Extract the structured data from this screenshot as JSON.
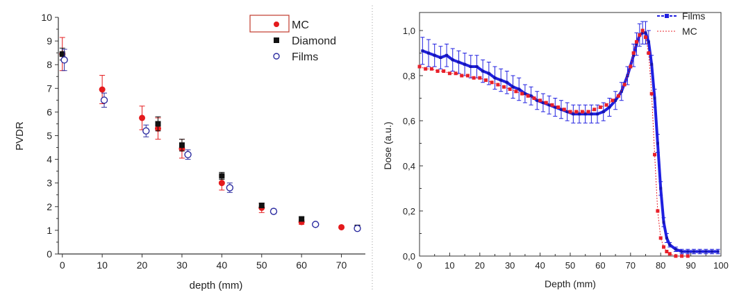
{
  "chart_data": [
    {
      "type": "scatter",
      "title": "",
      "xlabel": "depth (mm)",
      "ylabel": "PVDR",
      "xlim": [
        -1,
        76
      ],
      "ylim": [
        0,
        10
      ],
      "x_ticks": [
        0,
        10,
        20,
        30,
        40,
        50,
        60,
        70
      ],
      "y_ticks": [
        0,
        1,
        2,
        3,
        4,
        5,
        6,
        7,
        8,
        9,
        10
      ],
      "x_tick_labels": [
        "0",
        "10",
        "20",
        "30",
        "40",
        "50",
        "60",
        "70"
      ],
      "y_tick_labels": [
        "0",
        "1",
        "2",
        "3",
        "4",
        "5",
        "6",
        "7",
        "8",
        "9",
        "10"
      ],
      "grid": false,
      "legend_position": "top-right",
      "series": [
        {
          "name": "MC",
          "marker": "filled-circle",
          "color": "#e41a1c",
          "points": [
            {
              "x": 0,
              "y": 8.45,
              "err": 0.7
            },
            {
              "x": 10,
              "y": 6.95,
              "err": 0.6
            },
            {
              "x": 20,
              "y": 5.75,
              "err": 0.5
            },
            {
              "x": 24,
              "y": 5.3,
              "err": 0.45
            },
            {
              "x": 30,
              "y": 4.45,
              "err": 0.4
            },
            {
              "x": 40,
              "y": 3.0,
              "err": 0.3
            },
            {
              "x": 50,
              "y": 1.95,
              "err": 0.2
            },
            {
              "x": 60,
              "y": 1.35,
              "err": 0.1
            },
            {
              "x": 70,
              "y": 1.13,
              "err": 0.05
            }
          ]
        },
        {
          "name": "Diamond",
          "marker": "filled-square",
          "color": "#111111",
          "points": [
            {
              "x": 0,
              "y": 8.45,
              "err": 0.25
            },
            {
              "x": 24,
              "y": 5.5,
              "err": 0.3
            },
            {
              "x": 30,
              "y": 4.6,
              "err": 0.25
            },
            {
              "x": 40,
              "y": 3.3,
              "err": 0.15
            },
            {
              "x": 50,
              "y": 2.05,
              "err": 0.1
            },
            {
              "x": 60,
              "y": 1.48,
              "err": 0.08
            },
            {
              "x": 74,
              "y": 1.12,
              "err": 0.08
            }
          ]
        },
        {
          "name": "Films",
          "marker": "open-circle",
          "color": "#2b2ba0",
          "points": [
            {
              "x": 0.5,
              "y": 8.2,
              "err": 0.45
            },
            {
              "x": 10.5,
              "y": 6.5,
              "err": 0.3
            },
            {
              "x": 21,
              "y": 5.2,
              "err": 0.25
            },
            {
              "x": 31.5,
              "y": 4.2,
              "err": 0.2
            },
            {
              "x": 42,
              "y": 2.8,
              "err": 0.2
            },
            {
              "x": 53,
              "y": 1.8,
              "err": 0.1
            },
            {
              "x": 63.5,
              "y": 1.25,
              "err": 0.06
            },
            {
              "x": 74,
              "y": 1.08,
              "err": 0.08
            }
          ]
        }
      ]
    },
    {
      "type": "line",
      "title": "",
      "xlabel": "Depth (mm)",
      "ylabel": "Dose (a.u.)",
      "xlim": [
        0,
        100
      ],
      "ylim": [
        0,
        1.08
      ],
      "x_ticks": [
        0,
        10,
        20,
        30,
        40,
        50,
        60,
        70,
        80,
        90,
        100
      ],
      "y_ticks": [
        0,
        0.2,
        0.4,
        0.6,
        0.8,
        1.0
      ],
      "x_tick_labels": [
        "0",
        "10",
        "20",
        "30",
        "40",
        "50",
        "60",
        "70",
        "80",
        "90",
        "100"
      ],
      "y_tick_labels": [
        "0,0",
        "0,2",
        "0,4",
        "0,6",
        "0,8",
        "1,0"
      ],
      "grid": false,
      "legend_position": "top-right",
      "series": [
        {
          "name": "Films",
          "color": "#1f1fe0",
          "error_bars": true,
          "points": [
            [
              1,
              0.91
            ],
            [
              3,
              0.9
            ],
            [
              5,
              0.89
            ],
            [
              7,
              0.88
            ],
            [
              9,
              0.89
            ],
            [
              11,
              0.87
            ],
            [
              13,
              0.86
            ],
            [
              15,
              0.85
            ],
            [
              17,
              0.84
            ],
            [
              19,
              0.84
            ],
            [
              21,
              0.82
            ],
            [
              23,
              0.81
            ],
            [
              25,
              0.79
            ],
            [
              27,
              0.78
            ],
            [
              29,
              0.77
            ],
            [
              31,
              0.75
            ],
            [
              33,
              0.74
            ],
            [
              35,
              0.72
            ],
            [
              37,
              0.71
            ],
            [
              39,
              0.69
            ],
            [
              41,
              0.68
            ],
            [
              43,
              0.67
            ],
            [
              45,
              0.66
            ],
            [
              47,
              0.65
            ],
            [
              49,
              0.64
            ],
            [
              51,
              0.63
            ],
            [
              53,
              0.63
            ],
            [
              55,
              0.63
            ],
            [
              57,
              0.63
            ],
            [
              59,
              0.63
            ],
            [
              61,
              0.64
            ],
            [
              63,
              0.66
            ],
            [
              65,
              0.69
            ],
            [
              67,
              0.73
            ],
            [
              69,
              0.8
            ],
            [
              71,
              0.89
            ],
            [
              72,
              0.94
            ],
            [
              73,
              0.98
            ],
            [
              74,
              0.99
            ],
            [
              75,
              0.99
            ],
            [
              76,
              0.95
            ],
            [
              77,
              0.85
            ],
            [
              78,
              0.7
            ],
            [
              79,
              0.5
            ],
            [
              80,
              0.3
            ],
            [
              81,
              0.15
            ],
            [
              82,
              0.08
            ],
            [
              83,
              0.05
            ],
            [
              85,
              0.03
            ],
            [
              87,
              0.02
            ],
            [
              89,
              0.02
            ],
            [
              91,
              0.02
            ],
            [
              93,
              0.02
            ],
            [
              95,
              0.02
            ],
            [
              97,
              0.02
            ],
            [
              99,
              0.02
            ]
          ],
          "error": [
            0.06,
            0.06,
            0.05,
            0.05,
            0.05,
            0.05,
            0.05,
            0.05,
            0.05,
            0.05,
            0.05,
            0.05,
            0.05,
            0.05,
            0.05,
            0.05,
            0.05,
            0.04,
            0.04,
            0.04,
            0.04,
            0.04,
            0.04,
            0.04,
            0.04,
            0.04,
            0.04,
            0.04,
            0.04,
            0.04,
            0.04,
            0.04,
            0.04,
            0.04,
            0.04,
            0.05,
            0.05,
            0.05,
            0.05,
            0.05,
            0.05,
            0.04,
            0.04,
            0.04,
            0.03,
            0.02,
            0.02,
            0.01,
            0.01,
            0.01,
            0.01,
            0.01,
            0.01,
            0.01,
            0.01,
            0.01
          ]
        },
        {
          "name": "MC",
          "color": "#e8202a",
          "points": [
            [
              0,
              0.84
            ],
            [
              2,
              0.83
            ],
            [
              4,
              0.83
            ],
            [
              6,
              0.82
            ],
            [
              8,
              0.82
            ],
            [
              10,
              0.81
            ],
            [
              12,
              0.81
            ],
            [
              14,
              0.8
            ],
            [
              16,
              0.8
            ],
            [
              18,
              0.79
            ],
            [
              20,
              0.79
            ],
            [
              22,
              0.78
            ],
            [
              24,
              0.77
            ],
            [
              26,
              0.76
            ],
            [
              28,
              0.75
            ],
            [
              30,
              0.74
            ],
            [
              32,
              0.73
            ],
            [
              34,
              0.72
            ],
            [
              36,
              0.71
            ],
            [
              38,
              0.7
            ],
            [
              40,
              0.69
            ],
            [
              42,
              0.68
            ],
            [
              44,
              0.67
            ],
            [
              46,
              0.66
            ],
            [
              48,
              0.65
            ],
            [
              50,
              0.64
            ],
            [
              52,
              0.64
            ],
            [
              54,
              0.64
            ],
            [
              56,
              0.64
            ],
            [
              58,
              0.65
            ],
            [
              60,
              0.66
            ],
            [
              62,
              0.67
            ],
            [
              64,
              0.69
            ],
            [
              66,
              0.71
            ],
            [
              68,
              0.76
            ],
            [
              70,
              0.84
            ],
            [
              71,
              0.9
            ],
            [
              72,
              0.95
            ],
            [
              73,
              0.98
            ],
            [
              74,
              1.0
            ],
            [
              75,
              0.97
            ],
            [
              76,
              0.9
            ],
            [
              77,
              0.72
            ],
            [
              78,
              0.45
            ],
            [
              79,
              0.2
            ],
            [
              80,
              0.08
            ],
            [
              81,
              0.04
            ],
            [
              82,
              0.02
            ],
            [
              83,
              0.01
            ],
            [
              85,
              0.0
            ],
            [
              87,
              0.0
            ],
            [
              89,
              0.0
            ]
          ]
        }
      ]
    }
  ]
}
